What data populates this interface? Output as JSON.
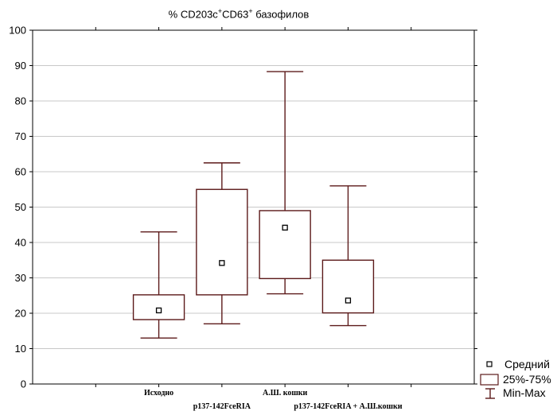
{
  "chart_data": {
    "type": "box",
    "title_parts": [
      "% CD203c",
      "+",
      "CD63",
      "+",
      " базофилов"
    ],
    "ylim": [
      0,
      100
    ],
    "yticks": [
      0,
      10,
      20,
      30,
      40,
      50,
      60,
      70,
      80,
      90,
      100
    ],
    "grid": true,
    "categories": [
      "Исходно",
      "p137-142FceRIA",
      "А.Ш. кошки",
      "p137-142FceRIA + А.Ш.кошки"
    ],
    "boxes": [
      {
        "min": 13,
        "q1": 18.2,
        "q3": 25.2,
        "max": 43,
        "mean": 20.8
      },
      {
        "min": 17,
        "q1": 25.2,
        "q3": 55,
        "max": 62.5,
        "mean": 34.2
      },
      {
        "min": 25.5,
        "q1": 29.8,
        "q3": 49,
        "max": 88.3,
        "mean": 44.2
      },
      {
        "min": 16.5,
        "q1": 20.1,
        "q3": 35,
        "max": 56,
        "mean": 23.6
      }
    ],
    "legend": {
      "position": "bottom-right",
      "mean_label": "Средний",
      "box_label": "25%-75%",
      "whisker_label": "Min-Max"
    },
    "colors": {
      "box": "#5c1a1a",
      "mean": "#000000",
      "grid": "#c8c8c8"
    }
  }
}
